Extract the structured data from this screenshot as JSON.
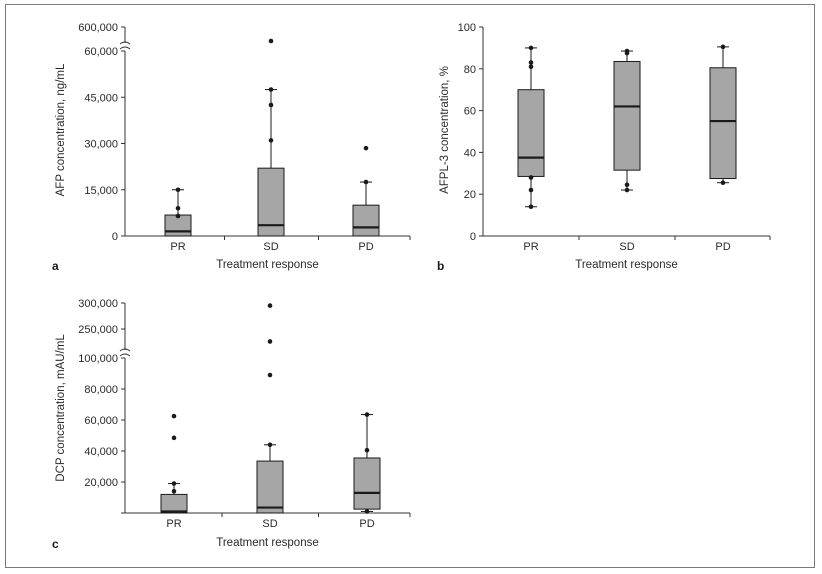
{
  "colors": {
    "box_fill": "#a6a6a6",
    "stroke": "#1a1a1a",
    "axis": "#333333",
    "frame": "#7a7a7a"
  },
  "chart_data": [
    {
      "type": "boxplot",
      "panel": "a",
      "xlabel": "Treatment response",
      "ylabel": "AFP concentration, ng/mL",
      "categories": [
        "PR",
        "SD",
        "PD"
      ],
      "ylim": [
        0,
        60000
      ],
      "axis_break": true,
      "break_top_tick": 600000,
      "yticks": [
        0,
        15000,
        30000,
        45000,
        60000
      ],
      "ytick_labels": [
        "0",
        "15,000",
        "30,000",
        "45,000",
        "60,000"
      ],
      "break_tick_label": "600,000",
      "boxes": [
        {
          "q1": 0,
          "median": 1500,
          "q3": 6800,
          "whisker_low": 0,
          "whisker_high": 15000,
          "points": [
            15000,
            9000,
            6500
          ]
        },
        {
          "q1": 0,
          "median": 3500,
          "q3": 22000,
          "whisker_low": 0,
          "whisker_high": 47500,
          "points": [
            64000,
            47500,
            42500,
            31000
          ]
        },
        {
          "q1": 0,
          "median": 2800,
          "q3": 10000,
          "whisker_low": 0,
          "whisker_high": 17500,
          "points": [
            28500,
            17500
          ]
        }
      ]
    },
    {
      "type": "boxplot",
      "panel": "b",
      "xlabel": "Treatment response",
      "ylabel": "AFPL-3 concentration, %",
      "categories": [
        "PR",
        "SD",
        "PD"
      ],
      "ylim": [
        0,
        100
      ],
      "yticks": [
        0,
        20,
        40,
        60,
        80,
        100
      ],
      "ytick_labels": [
        "0",
        "20",
        "40",
        "60",
        "80",
        "100"
      ],
      "boxes": [
        {
          "q1": 28.5,
          "median": 37.5,
          "q3": 70,
          "whisker_low": 14,
          "whisker_high": 90,
          "points": [
            90,
            83,
            81,
            28,
            22,
            14
          ]
        },
        {
          "q1": 31.5,
          "median": 62,
          "q3": 83.5,
          "whisker_low": 22,
          "whisker_high": 88.5,
          "points": [
            88.5,
            87.5,
            24.5,
            22
          ]
        },
        {
          "q1": 27.5,
          "median": 55,
          "q3": 80.5,
          "whisker_low": 25.5,
          "whisker_high": 90.5,
          "points": [
            90.5,
            25.5
          ]
        }
      ]
    },
    {
      "type": "boxplot",
      "panel": "c",
      "xlabel": "Treatment response",
      "ylabel": "DCP concentration, mAU/mL",
      "categories": [
        "PR",
        "SD",
        "PD"
      ],
      "ylim": [
        0,
        100000
      ],
      "axis_break": true,
      "break_range": [
        200000,
        300000
      ],
      "yticks": [
        0,
        20000,
        40000,
        60000,
        80000,
        100000
      ],
      "ytick_labels": [
        "",
        "20,000",
        "40,000",
        "60,000",
        "80,000",
        "100,000"
      ],
      "upper_ticks": [
        250000,
        300000
      ],
      "upper_tick_labels": [
        "250,000",
        "300,000"
      ],
      "boxes": [
        {
          "q1": 0,
          "median": 1000,
          "q3": 12000,
          "whisker_low": 0,
          "whisker_high": 19000,
          "points": [
            62500,
            48500,
            19000,
            14000
          ]
        },
        {
          "q1": 0,
          "median": 3500,
          "q3": 33500,
          "whisker_low": 0,
          "whisker_high": 44000,
          "points": [
            295000,
            226000,
            89000,
            44000
          ]
        },
        {
          "q1": 2500,
          "median": 13000,
          "q3": 35500,
          "whisker_low": 1000,
          "whisker_high": 63500,
          "points": [
            63500,
            40500,
            1000
          ]
        }
      ]
    }
  ]
}
